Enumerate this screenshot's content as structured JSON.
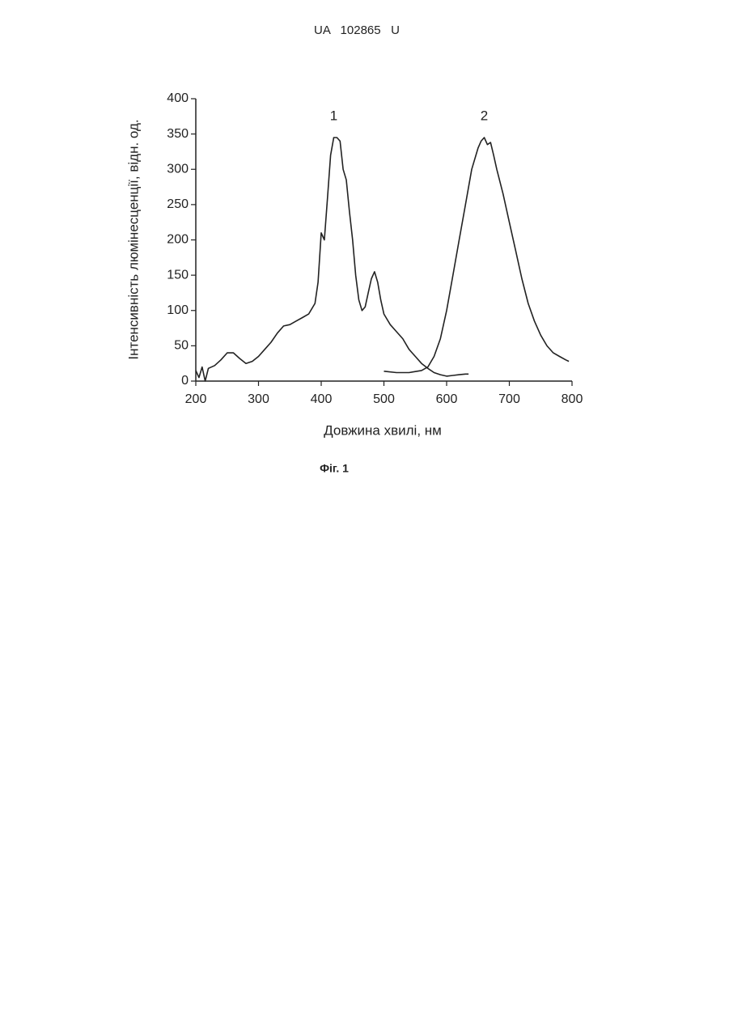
{
  "header": "UA   102865   U",
  "caption": "Фіг. 1",
  "chart_data": {
    "type": "line",
    "xlabel": "Довжина хвилі, нм",
    "ylabel": "Інтенсивність люмінесценції, відн. од.",
    "xlim": [
      200,
      800
    ],
    "ylim": [
      0,
      400
    ],
    "xticks": [
      200,
      300,
      400,
      500,
      600,
      700,
      800
    ],
    "yticks": [
      0,
      50,
      100,
      150,
      200,
      250,
      300,
      350,
      400
    ],
    "series": [
      {
        "name": "1",
        "color": "#222222",
        "x": [
          200,
          205,
          210,
          215,
          220,
          230,
          240,
          250,
          260,
          270,
          280,
          290,
          300,
          310,
          320,
          330,
          340,
          350,
          360,
          370,
          380,
          390,
          395,
          400,
          405,
          410,
          415,
          420,
          425,
          430,
          435,
          440,
          445,
          450,
          455,
          460,
          465,
          470,
          475,
          480,
          485,
          490,
          495,
          500,
          510,
          520,
          530,
          540,
          550,
          560,
          570,
          580,
          590,
          600,
          610,
          620,
          630,
          635
        ],
        "values": [
          15,
          5,
          20,
          0,
          18,
          22,
          30,
          40,
          40,
          32,
          25,
          28,
          35,
          45,
          55,
          68,
          78,
          80,
          85,
          90,
          95,
          110,
          140,
          210,
          200,
          260,
          320,
          345,
          345,
          340,
          300,
          285,
          240,
          200,
          150,
          115,
          100,
          105,
          125,
          145,
          155,
          140,
          115,
          95,
          80,
          70,
          60,
          45,
          35,
          25,
          18,
          12,
          9,
          7,
          8,
          9,
          10,
          10
        ]
      },
      {
        "name": "2",
        "color": "#222222",
        "x": [
          500,
          520,
          540,
          560,
          570,
          580,
          590,
          600,
          610,
          620,
          630,
          640,
          650,
          655,
          660,
          665,
          670,
          675,
          680,
          690,
          700,
          710,
          720,
          730,
          740,
          750,
          760,
          770,
          780,
          790,
          795
        ],
        "values": [
          14,
          12,
          12,
          15,
          20,
          35,
          60,
          100,
          150,
          200,
          250,
          300,
          330,
          340,
          345,
          335,
          338,
          320,
          300,
          265,
          225,
          185,
          145,
          110,
          85,
          65,
          50,
          40,
          35,
          30,
          28
        ]
      }
    ]
  }
}
